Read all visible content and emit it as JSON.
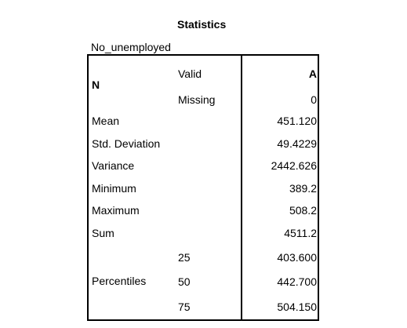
{
  "title": "Statistics",
  "variable": "No_unemployed",
  "n": {
    "label": "N",
    "valid_label": "Valid",
    "valid_value": "A",
    "missing_label": "Missing",
    "missing_value": "0"
  },
  "rows": [
    {
      "label": "Mean",
      "value": "451.120"
    },
    {
      "label": "Std. Deviation",
      "value": "49.4229"
    },
    {
      "label": "Variance",
      "value": "2442.626"
    },
    {
      "label": "Minimum",
      "value": "389.2"
    },
    {
      "label": "Maximum",
      "value": "508.2"
    },
    {
      "label": "Sum",
      "value": "4511.2"
    }
  ],
  "percentiles": {
    "label": "Percentiles",
    "items": [
      {
        "p": "25",
        "value": "403.600"
      },
      {
        "p": "50",
        "value": "442.700"
      },
      {
        "p": "75",
        "value": "504.150"
      }
    ]
  }
}
